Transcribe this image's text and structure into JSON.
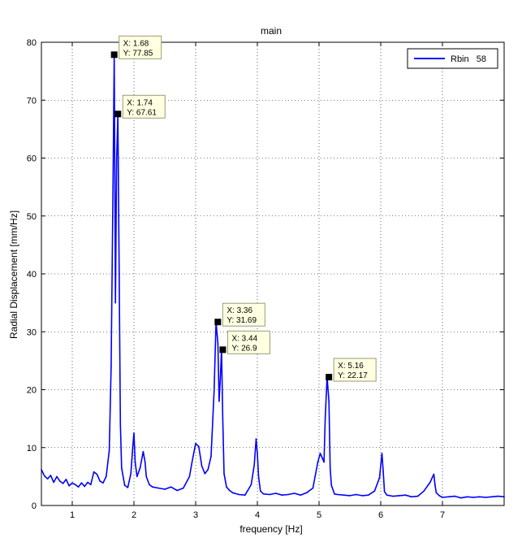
{
  "chart_data": {
    "type": "line",
    "title": "main",
    "xlabel": "frequency [Hz]",
    "ylabel": "Radial Displacement [mm/Hz]",
    "xlim": [
      0.5,
      8.0
    ],
    "ylim": [
      0,
      80
    ],
    "xticks": [
      1,
      2,
      3,
      4,
      5,
      6,
      7
    ],
    "yticks": [
      0,
      10,
      20,
      30,
      40,
      50,
      60,
      70,
      80
    ],
    "grid": true,
    "legend_position": "top-right",
    "series": [
      {
        "name": "Rbin   58",
        "color": "#0000ff",
        "x": [
          0.5,
          0.55,
          0.6,
          0.65,
          0.7,
          0.75,
          0.8,
          0.85,
          0.9,
          0.95,
          1.0,
          1.05,
          1.1,
          1.15,
          1.2,
          1.25,
          1.3,
          1.35,
          1.4,
          1.45,
          1.5,
          1.55,
          1.6,
          1.63,
          1.66,
          1.68,
          1.7,
          1.72,
          1.74,
          1.76,
          1.78,
          1.8,
          1.85,
          1.9,
          1.95,
          1.98,
          2.0,
          2.02,
          2.05,
          2.1,
          2.15,
          2.18,
          2.2,
          2.25,
          2.3,
          2.4,
          2.5,
          2.6,
          2.7,
          2.8,
          2.9,
          2.95,
          3.0,
          3.05,
          3.1,
          3.15,
          3.2,
          3.25,
          3.3,
          3.33,
          3.36,
          3.38,
          3.4,
          3.42,
          3.44,
          3.46,
          3.5,
          3.55,
          3.6,
          3.7,
          3.8,
          3.9,
          3.95,
          3.98,
          4.0,
          4.02,
          4.05,
          4.1,
          4.2,
          4.3,
          4.4,
          4.5,
          4.6,
          4.7,
          4.8,
          4.9,
          4.98,
          5.02,
          5.06,
          5.08,
          5.1,
          5.13,
          5.16,
          5.18,
          5.2,
          5.25,
          5.3,
          5.4,
          5.5,
          5.6,
          5.7,
          5.8,
          5.9,
          5.98,
          6.02,
          6.04,
          6.06,
          6.1,
          6.2,
          6.3,
          6.4,
          6.5,
          6.6,
          6.7,
          6.8,
          6.86,
          6.88,
          6.9,
          6.95,
          7.0,
          7.1,
          7.2,
          7.3,
          7.4,
          7.5,
          7.6,
          7.7,
          7.8,
          7.9,
          8.0
        ],
        "y": [
          6.2,
          5.1,
          4.6,
          5.2,
          4.0,
          5.0,
          4.2,
          3.8,
          4.5,
          3.4,
          3.9,
          3.6,
          3.2,
          3.9,
          3.3,
          4.0,
          3.6,
          5.8,
          5.4,
          4.2,
          3.9,
          5.0,
          9.5,
          24.0,
          55.0,
          77.85,
          35.0,
          60.0,
          67.61,
          40.0,
          14.0,
          6.5,
          3.5,
          3.1,
          5.5,
          10.0,
          12.5,
          7.5,
          5.0,
          6.5,
          9.3,
          7.5,
          5.0,
          3.6,
          3.2,
          3.0,
          2.8,
          3.2,
          2.6,
          3.0,
          5.0,
          8.0,
          10.7,
          10.2,
          6.8,
          5.5,
          6.2,
          8.5,
          20.0,
          31.69,
          28.0,
          18.0,
          22.0,
          26.9,
          15.0,
          5.5,
          3.2,
          2.6,
          2.2,
          1.9,
          1.8,
          3.6,
          7.0,
          11.5,
          9.0,
          5.0,
          2.5,
          2.0,
          1.9,
          2.1,
          1.8,
          1.9,
          2.1,
          1.8,
          2.2,
          3.0,
          7.5,
          9.0,
          8.0,
          7.5,
          15.0,
          22.17,
          18.0,
          6.5,
          3.5,
          2.0,
          1.9,
          1.8,
          1.7,
          1.9,
          1.7,
          1.8,
          2.5,
          4.8,
          9.0,
          6.0,
          2.4,
          1.8,
          1.6,
          1.7,
          1.8,
          1.5,
          1.6,
          2.5,
          4.0,
          5.4,
          3.5,
          2.2,
          1.7,
          1.4,
          1.5,
          1.6,
          1.3,
          1.5,
          1.4,
          1.5,
          1.4,
          1.5,
          1.6,
          1.5
        ]
      }
    ],
    "annotations": [
      {
        "x": 1.68,
        "y": 77.85,
        "lines": [
          "X: 1.68",
          "Y: 77.85"
        ]
      },
      {
        "x": 1.74,
        "y": 67.61,
        "lines": [
          "X: 1.74",
          "Y: 67.61"
        ]
      },
      {
        "x": 3.36,
        "y": 31.69,
        "lines": [
          "X: 3.36",
          "Y: 31.69"
        ]
      },
      {
        "x": 3.44,
        "y": 26.9,
        "lines": [
          "X: 3.44",
          "Y: 26.9"
        ]
      },
      {
        "x": 5.16,
        "y": 22.17,
        "lines": [
          "X: 5.16",
          "Y: 22.17"
        ]
      }
    ]
  }
}
